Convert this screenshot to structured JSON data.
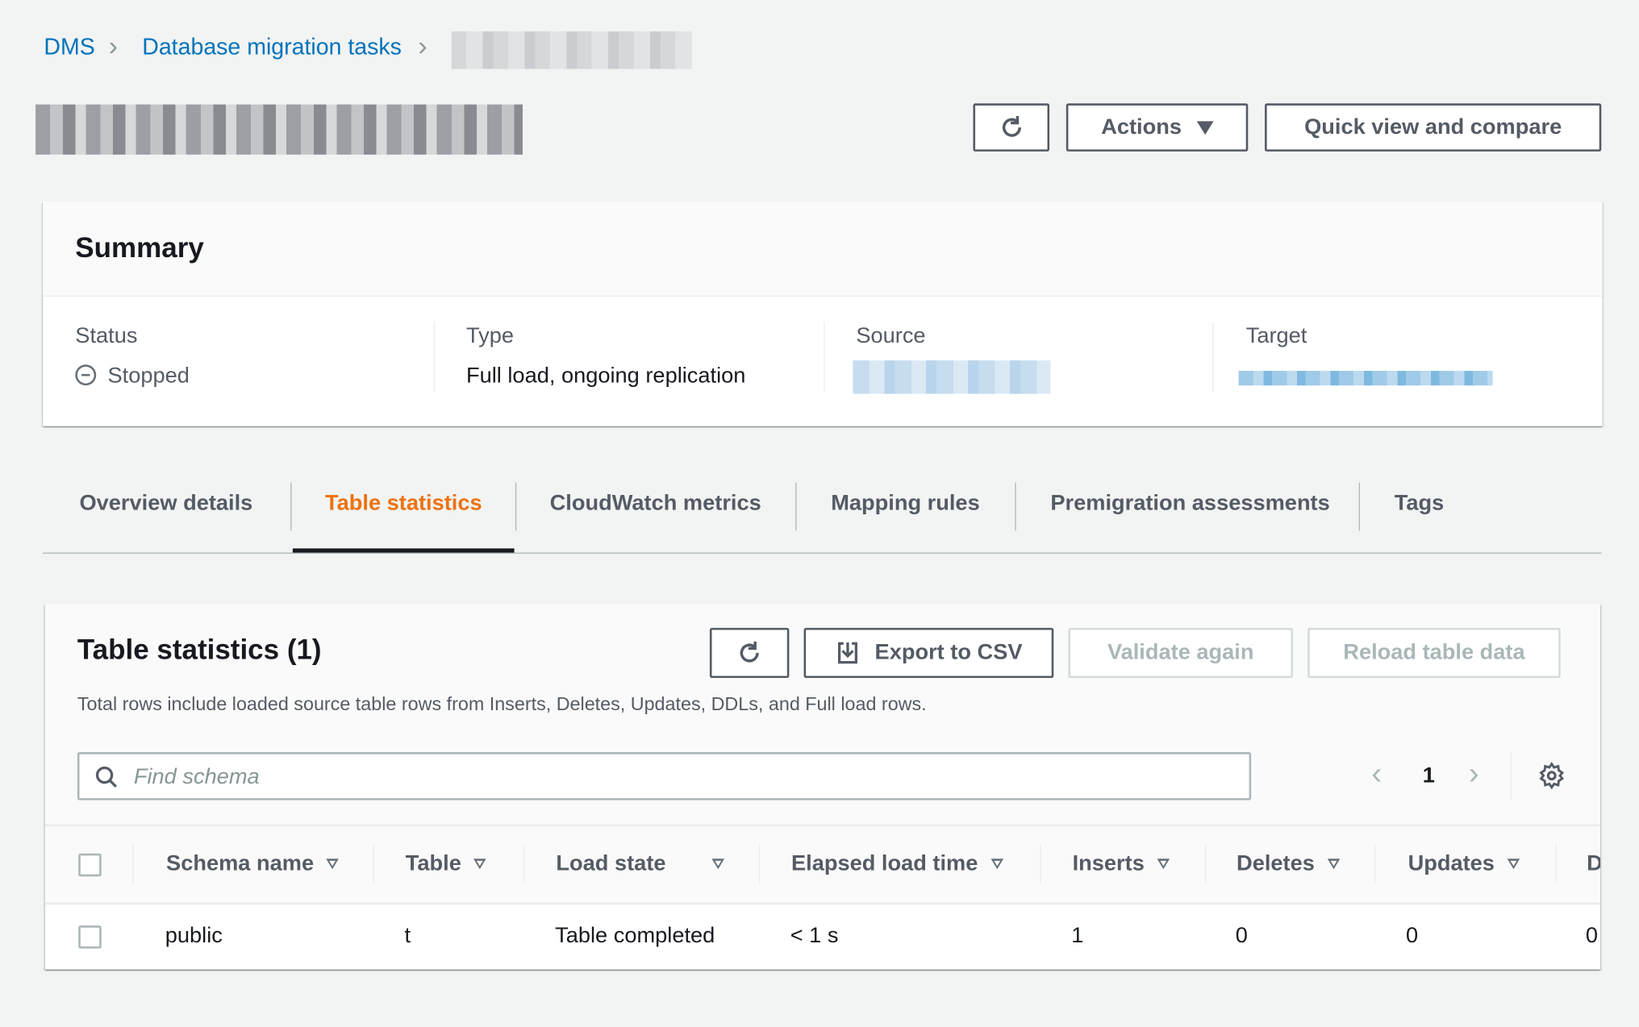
{
  "breadcrumb": {
    "items": [
      "DMS",
      "Database migration tasks"
    ]
  },
  "header": {
    "actions_label": "Actions",
    "quick_view_label": "Quick view and compare"
  },
  "summary": {
    "title": "Summary",
    "status_label": "Status",
    "status_value": "Stopped",
    "type_label": "Type",
    "type_value": "Full load, ongoing replication",
    "source_label": "Source",
    "target_label": "Target"
  },
  "tabs": [
    {
      "label": "Overview details"
    },
    {
      "label": "Table statistics",
      "active": true
    },
    {
      "label": "CloudWatch metrics"
    },
    {
      "label": "Mapping rules"
    },
    {
      "label": "Premigration assessments"
    },
    {
      "label": "Tags"
    }
  ],
  "table_stats": {
    "title": "Table statistics (1)",
    "export_label": "Export to CSV",
    "validate_label": "Validate again",
    "reload_label": "Reload table data",
    "description": "Total rows include loaded source table rows from Inserts, Deletes, Updates, DDLs, and Full load rows.",
    "search_placeholder": "Find schema",
    "page": "1",
    "columns": [
      "Schema name",
      "Table",
      "Load state",
      "Elapsed load time",
      "Inserts",
      "Deletes",
      "Updates",
      "D"
    ],
    "rows": [
      [
        "public",
        "t",
        "Table completed",
        "< 1 s",
        "1",
        "0",
        "0",
        "0"
      ]
    ]
  },
  "colors": {
    "link": "#0073bb",
    "active_tab": "#ec7211",
    "background": "#f2f3f3"
  }
}
